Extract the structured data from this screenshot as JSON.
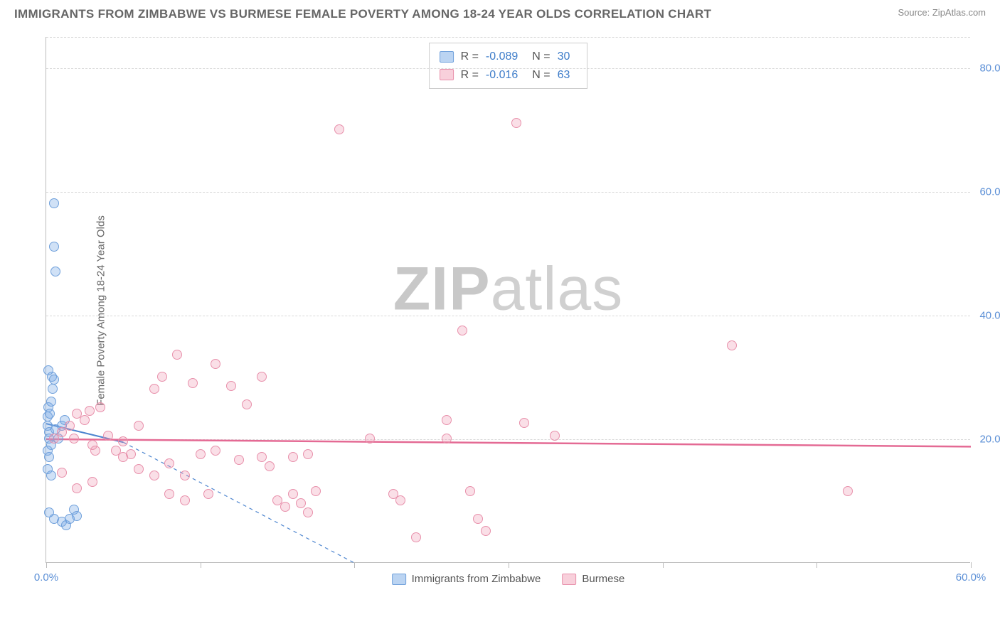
{
  "header": {
    "title": "IMMIGRANTS FROM ZIMBABWE VS BURMESE FEMALE POVERTY AMONG 18-24 YEAR OLDS CORRELATION CHART",
    "source": "Source: ZipAtlas.com"
  },
  "watermark": {
    "prefix": "ZIP",
    "suffix": "atlas"
  },
  "chart": {
    "type": "scatter",
    "y_axis_label": "Female Poverty Among 18-24 Year Olds",
    "xlim": [
      0,
      60
    ],
    "ylim": [
      0,
      85
    ],
    "x_ticks": [
      0,
      60
    ],
    "x_tick_labels": [
      "0.0%",
      "60.0%"
    ],
    "x_minor_ticks": [
      10,
      20,
      30,
      40,
      50
    ],
    "y_ticks": [
      20,
      40,
      60,
      80
    ],
    "y_tick_labels": [
      "20.0%",
      "40.0%",
      "60.0%",
      "80.0%"
    ],
    "background_color": "#ffffff",
    "grid_color": "#d8d8d8",
    "axis_color": "#bbbbbb",
    "tick_label_color": "#5b8fd6",
    "marker_size": 14,
    "series": [
      {
        "name": "Immigrants from Zimbabwe",
        "short": "blue",
        "fill_color": "rgba(120,170,230,0.35)",
        "stroke_color": "#6fa0db",
        "R": "-0.089",
        "N": "30",
        "trend": {
          "x1": 0,
          "y1": 22.5,
          "x2": 5,
          "y2": 19.5,
          "dash_x2": 20,
          "dash_y2": 0,
          "color": "#4d85cf",
          "width": 2
        },
        "points": [
          [
            0.1,
            22.0
          ],
          [
            0.1,
            23.5
          ],
          [
            0.15,
            25.0
          ],
          [
            0.2,
            21.0
          ],
          [
            0.2,
            20.0
          ],
          [
            0.3,
            19.0
          ],
          [
            0.1,
            18.0
          ],
          [
            0.2,
            17.0
          ],
          [
            0.25,
            24.0
          ],
          [
            0.3,
            26.0
          ],
          [
            0.4,
            28.0
          ],
          [
            0.35,
            30.0
          ],
          [
            0.15,
            31.0
          ],
          [
            0.5,
            29.5
          ],
          [
            0.6,
            21.5
          ],
          [
            0.8,
            20.0
          ],
          [
            1.0,
            22.0
          ],
          [
            1.2,
            23.0
          ],
          [
            0.1,
            15.0
          ],
          [
            0.3,
            14.0
          ],
          [
            0.5,
            58.0
          ],
          [
            0.5,
            51.0
          ],
          [
            0.6,
            47.0
          ],
          [
            0.2,
            8.0
          ],
          [
            0.5,
            7.0
          ],
          [
            1.0,
            6.5
          ],
          [
            1.3,
            6.0
          ],
          [
            1.5,
            7.0
          ],
          [
            1.8,
            8.5
          ],
          [
            2.0,
            7.5
          ]
        ]
      },
      {
        "name": "Burmese",
        "short": "pink",
        "fill_color": "rgba(240,150,175,0.30)",
        "stroke_color": "#e890ab",
        "R": "-0.016",
        "N": "63",
        "trend": {
          "x1": 0,
          "y1": 20.0,
          "x2": 60,
          "y2": 18.8,
          "color": "#e46a94",
          "width": 2.5
        },
        "points": [
          [
            0.5,
            20.0
          ],
          [
            1.0,
            21.0
          ],
          [
            1.5,
            22.0
          ],
          [
            1.8,
            20.0
          ],
          [
            2.0,
            24.0
          ],
          [
            2.5,
            23.0
          ],
          [
            2.8,
            24.5
          ],
          [
            3.0,
            19.0
          ],
          [
            3.5,
            25.0
          ],
          [
            3.2,
            18.0
          ],
          [
            4.0,
            20.5
          ],
          [
            4.5,
            18.0
          ],
          [
            5.0,
            19.5
          ],
          [
            5.0,
            17.0
          ],
          [
            5.5,
            17.5
          ],
          [
            6.0,
            22.0
          ],
          [
            6.0,
            15.0
          ],
          [
            7.0,
            28.0
          ],
          [
            7.0,
            14.0
          ],
          [
            7.5,
            30.0
          ],
          [
            8.0,
            16.0
          ],
          [
            8.0,
            11.0
          ],
          [
            8.5,
            33.5
          ],
          [
            9.0,
            14.0
          ],
          [
            9.0,
            10.0
          ],
          [
            9.5,
            29.0
          ],
          [
            10.0,
            17.5
          ],
          [
            10.5,
            11.0
          ],
          [
            11.0,
            18.0
          ],
          [
            11.0,
            32.0
          ],
          [
            12.0,
            28.5
          ],
          [
            12.5,
            16.5
          ],
          [
            13.0,
            25.5
          ],
          [
            14.0,
            30.0
          ],
          [
            14.0,
            17.0
          ],
          [
            14.5,
            15.5
          ],
          [
            15.0,
            10.0
          ],
          [
            15.5,
            9.0
          ],
          [
            16.0,
            11.0
          ],
          [
            16.0,
            17.0
          ],
          [
            16.5,
            9.5
          ],
          [
            17.0,
            8.0
          ],
          [
            17.5,
            11.5
          ],
          [
            17.0,
            17.5
          ],
          [
            19.0,
            70.0
          ],
          [
            21.0,
            20.0
          ],
          [
            22.5,
            11.0
          ],
          [
            23.0,
            10.0
          ],
          [
            24.0,
            4.0
          ],
          [
            26.0,
            23.0
          ],
          [
            26.0,
            20.0
          ],
          [
            27.0,
            37.5
          ],
          [
            27.5,
            11.5
          ],
          [
            28.0,
            7.0
          ],
          [
            28.5,
            5.0
          ],
          [
            30.5,
            71.0
          ],
          [
            31.0,
            22.5
          ],
          [
            33.0,
            20.5
          ],
          [
            44.5,
            35.0
          ],
          [
            52.0,
            11.5
          ],
          [
            1.0,
            14.5
          ],
          [
            2.0,
            12.0
          ],
          [
            3.0,
            13.0
          ]
        ]
      }
    ],
    "legend_bottom": [
      {
        "label": "Immigrants from Zimbabwe",
        "swatch": "blue"
      },
      {
        "label": "Burmese",
        "swatch": "pink"
      }
    ]
  }
}
